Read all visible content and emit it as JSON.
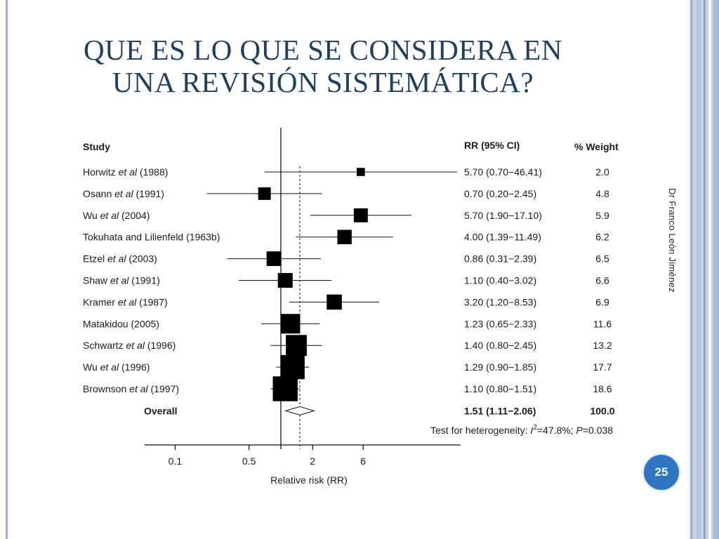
{
  "slide": {
    "title_line1": "QUE ES LO QUE SE CONSIDERA EN",
    "title_line2": "UNA REVISIÓN SISTEMÁTICA?",
    "author": "Dr Franco León Jiménez",
    "page_number": "25"
  },
  "colors": {
    "title": "#1f3f5c",
    "badge": "#2e76c3",
    "frame": "#c7d3e4"
  },
  "chart_data": {
    "type": "forest",
    "headers": {
      "study": "Study",
      "rr": "RR (95% CI)",
      "weight": "% Weight"
    },
    "studies": [
      {
        "name": "Horwitz",
        "etal": true,
        "year": "(1988)",
        "rr": 5.7,
        "lo": 0.7,
        "hi": 46.41,
        "rr_text": "5.70 (0.70−46.41)",
        "weight": "2.0"
      },
      {
        "name": "Osann",
        "etal": true,
        "year": "(1991)",
        "rr": 0.7,
        "lo": 0.2,
        "hi": 2.45,
        "rr_text": "0.70 (0.20−2.45)",
        "weight": "4.8"
      },
      {
        "name": "Wu",
        "etal": true,
        "year": "(2004)",
        "rr": 5.7,
        "lo": 1.9,
        "hi": 17.1,
        "rr_text": "5.70 (1.90−17.10)",
        "weight": "5.9"
      },
      {
        "name": "Tokuhata and Lilienfeld",
        "etal": false,
        "year": "(1963b)",
        "rr": 4.0,
        "lo": 1.39,
        "hi": 11.49,
        "rr_text": "4.00 (1.39−11.49)",
        "weight": "6.2"
      },
      {
        "name": "Etzel",
        "etal": true,
        "year": "(2003)",
        "rr": 0.86,
        "lo": 0.31,
        "hi": 2.39,
        "rr_text": "0.86 (0.31−2.39)",
        "weight": "6.5"
      },
      {
        "name": "Shaw",
        "etal": true,
        "year": "(1991)",
        "rr": 1.1,
        "lo": 0.4,
        "hi": 3.02,
        "rr_text": "1.10 (0.40−3.02)",
        "weight": "6.6"
      },
      {
        "name": "Kramer",
        "etal": true,
        "year": "(1987)",
        "rr": 3.2,
        "lo": 1.2,
        "hi": 8.53,
        "rr_text": "3.20 (1.20−8.53)",
        "weight": "6.9"
      },
      {
        "name": "Matakidou",
        "etal": false,
        "year": "(2005)",
        "rr": 1.23,
        "lo": 0.65,
        "hi": 2.33,
        "rr_text": "1.23 (0.65−2.33)",
        "weight": "11.6"
      },
      {
        "name": "Schwartz",
        "etal": true,
        "year": "(1996)",
        "rr": 1.4,
        "lo": 0.8,
        "hi": 2.45,
        "rr_text": "1.40 (0.80−2.45)",
        "weight": "13.2"
      },
      {
        "name": "Wu",
        "etal": true,
        "year": "(1996)",
        "rr": 1.29,
        "lo": 0.9,
        "hi": 1.85,
        "rr_text": "1.29 (0.90−1.85)",
        "weight": "17.7"
      },
      {
        "name": "Brownson",
        "etal": true,
        "year": " (1997)",
        "rr": 1.1,
        "lo": 0.8,
        "hi": 1.51,
        "rr_text": "1.10 (0.80−1.51)",
        "weight": "18.6"
      }
    ],
    "overall": {
      "label": "Overall",
      "rr": 1.51,
      "lo": 1.11,
      "hi": 2.06,
      "rr_text": "1.51 (1.11−2.06)",
      "weight": "100.0"
    },
    "heterogeneity": {
      "prefix": "Test for heterogeneity: ",
      "i_label": "I",
      "i_sup": "2",
      "i_value": "=47.8%; ",
      "p_label": "P",
      "p_value": "=0.038"
    },
    "x_ticks": [
      {
        "value": 0.1,
        "label": "0.1"
      },
      {
        "value": 0.5,
        "label": "0.5"
      },
      {
        "value": 2,
        "label": "2"
      },
      {
        "value": 6,
        "label": "6"
      }
    ],
    "xlabel": "Relative risk (RR)",
    "x_scale": "log",
    "null_line": 1
  }
}
